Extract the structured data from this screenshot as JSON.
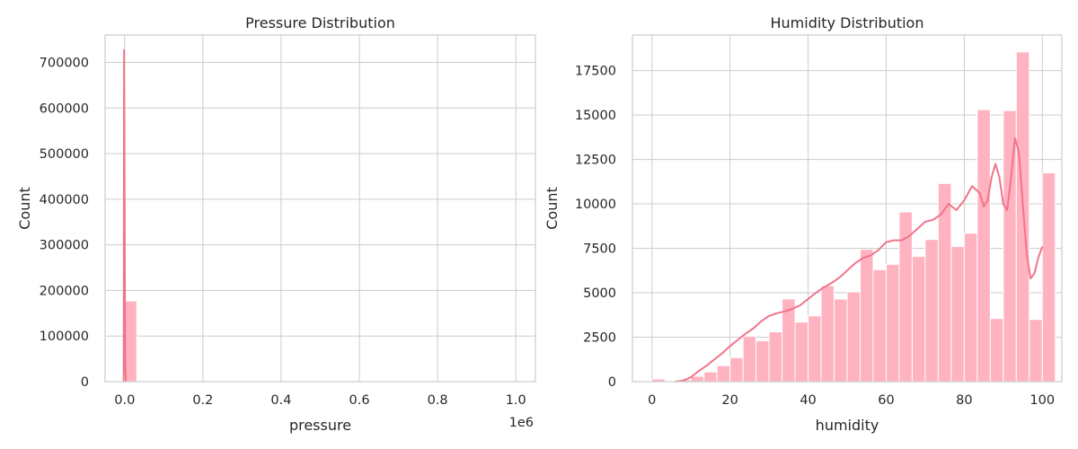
{
  "chart_data": [
    {
      "type": "bar",
      "title": "Pressure Distribution",
      "xlabel": "pressure",
      "ylabel": "Count",
      "x_offset_label": "1e6",
      "xlim": [
        -0.05,
        1.05
      ],
      "ylim": [
        0,
        760000
      ],
      "xticks": [
        0.0,
        0.2,
        0.4,
        0.6,
        0.8,
        1.0
      ],
      "xtick_labels": [
        "0.0",
        "0.2",
        "0.4",
        "0.6",
        "0.8",
        "1.0"
      ],
      "yticks": [
        0,
        100000,
        200000,
        300000,
        400000,
        500000,
        600000,
        700000
      ],
      "ytick_labels": [
        "0",
        "100000",
        "200000",
        "300000",
        "400000",
        "500000",
        "600000",
        "700000"
      ],
      "grid": true,
      "bar_color": "#ffb3c1",
      "kde_color": "#f0758a",
      "bins": [
        {
          "x0": 0.0,
          "x1": 0.0333,
          "count": 177000
        }
      ],
      "kde": [
        {
          "x": -0.0025,
          "y": 0
        },
        {
          "x": -0.0015,
          "y": 727000
        },
        {
          "x": -0.0005,
          "y": 540000
        },
        {
          "x": 0.0005,
          "y": 230000
        },
        {
          "x": 0.0015,
          "y": 40000
        },
        {
          "x": 0.003,
          "y": 0
        }
      ]
    },
    {
      "type": "bar",
      "title": "Humidity Distribution",
      "xlabel": "humidity",
      "ylabel": "Count",
      "xlim": [
        -5,
        105
      ],
      "ylim": [
        0,
        19500
      ],
      "xticks": [
        0,
        20,
        40,
        60,
        80,
        100
      ],
      "xtick_labels": [
        "0",
        "20",
        "40",
        "60",
        "80",
        "100"
      ],
      "yticks": [
        0,
        2500,
        5000,
        7500,
        10000,
        12500,
        15000,
        17500
      ],
      "ytick_labels": [
        "0",
        "2500",
        "5000",
        "7500",
        "10000",
        "12500",
        "15000",
        "17500"
      ],
      "grid": true,
      "bar_color": "#ffb3c1",
      "kde_color": "#f0758a",
      "bin_width": 3.3333,
      "bin_start": 0,
      "counts": [
        150,
        50,
        100,
        300,
        550,
        900,
        1350,
        2550,
        2300,
        2800,
        4650,
        3350,
        3700,
        5400,
        4650,
        5050,
        7450,
        6300,
        6600,
        9550,
        7050,
        8000,
        11150,
        7600,
        8350,
        15300,
        3550,
        15250,
        18550,
        3500,
        11750
      ],
      "kde": [
        {
          "x": 6,
          "y": 0
        },
        {
          "x": 8,
          "y": 60
        },
        {
          "x": 10,
          "y": 250
        },
        {
          "x": 12,
          "y": 600
        },
        {
          "x": 14,
          "y": 900
        },
        {
          "x": 16,
          "y": 1250
        },
        {
          "x": 18,
          "y": 1600
        },
        {
          "x": 20,
          "y": 2000
        },
        {
          "x": 22,
          "y": 2350
        },
        {
          "x": 24,
          "y": 2700
        },
        {
          "x": 26,
          "y": 3000
        },
        {
          "x": 28,
          "y": 3400
        },
        {
          "x": 30,
          "y": 3700
        },
        {
          "x": 32,
          "y": 3850
        },
        {
          "x": 34,
          "y": 3950
        },
        {
          "x": 36,
          "y": 4100
        },
        {
          "x": 38,
          "y": 4300
        },
        {
          "x": 40,
          "y": 4650
        },
        {
          "x": 42,
          "y": 5000
        },
        {
          "x": 44,
          "y": 5300
        },
        {
          "x": 46,
          "y": 5550
        },
        {
          "x": 48,
          "y": 5850
        },
        {
          "x": 50,
          "y": 6250
        },
        {
          "x": 52,
          "y": 6650
        },
        {
          "x": 54,
          "y": 6950
        },
        {
          "x": 56,
          "y": 7100
        },
        {
          "x": 58,
          "y": 7400
        },
        {
          "x": 60,
          "y": 7850
        },
        {
          "x": 62,
          "y": 7950
        },
        {
          "x": 64,
          "y": 7950
        },
        {
          "x": 66,
          "y": 8200
        },
        {
          "x": 68,
          "y": 8600
        },
        {
          "x": 70,
          "y": 9000
        },
        {
          "x": 72,
          "y": 9100
        },
        {
          "x": 74,
          "y": 9400
        },
        {
          "x": 76,
          "y": 10000
        },
        {
          "x": 78,
          "y": 9650
        },
        {
          "x": 80,
          "y": 10200
        },
        {
          "x": 82,
          "y": 11000
        },
        {
          "x": 84,
          "y": 10600
        },
        {
          "x": 85,
          "y": 9850
        },
        {
          "x": 86,
          "y": 10200
        },
        {
          "x": 87,
          "y": 11500
        },
        {
          "x": 88,
          "y": 12250
        },
        {
          "x": 89,
          "y": 11500
        },
        {
          "x": 90,
          "y": 10000
        },
        {
          "x": 91,
          "y": 9650
        },
        {
          "x": 92,
          "y": 11500
        },
        {
          "x": 93,
          "y": 13700
        },
        {
          "x": 94,
          "y": 12900
        },
        {
          "x": 95,
          "y": 10000
        },
        {
          "x": 96,
          "y": 7200
        },
        {
          "x": 97,
          "y": 5800
        },
        {
          "x": 98,
          "y": 6100
        },
        {
          "x": 99,
          "y": 7000
        },
        {
          "x": 100,
          "y": 7600
        }
      ]
    }
  ]
}
